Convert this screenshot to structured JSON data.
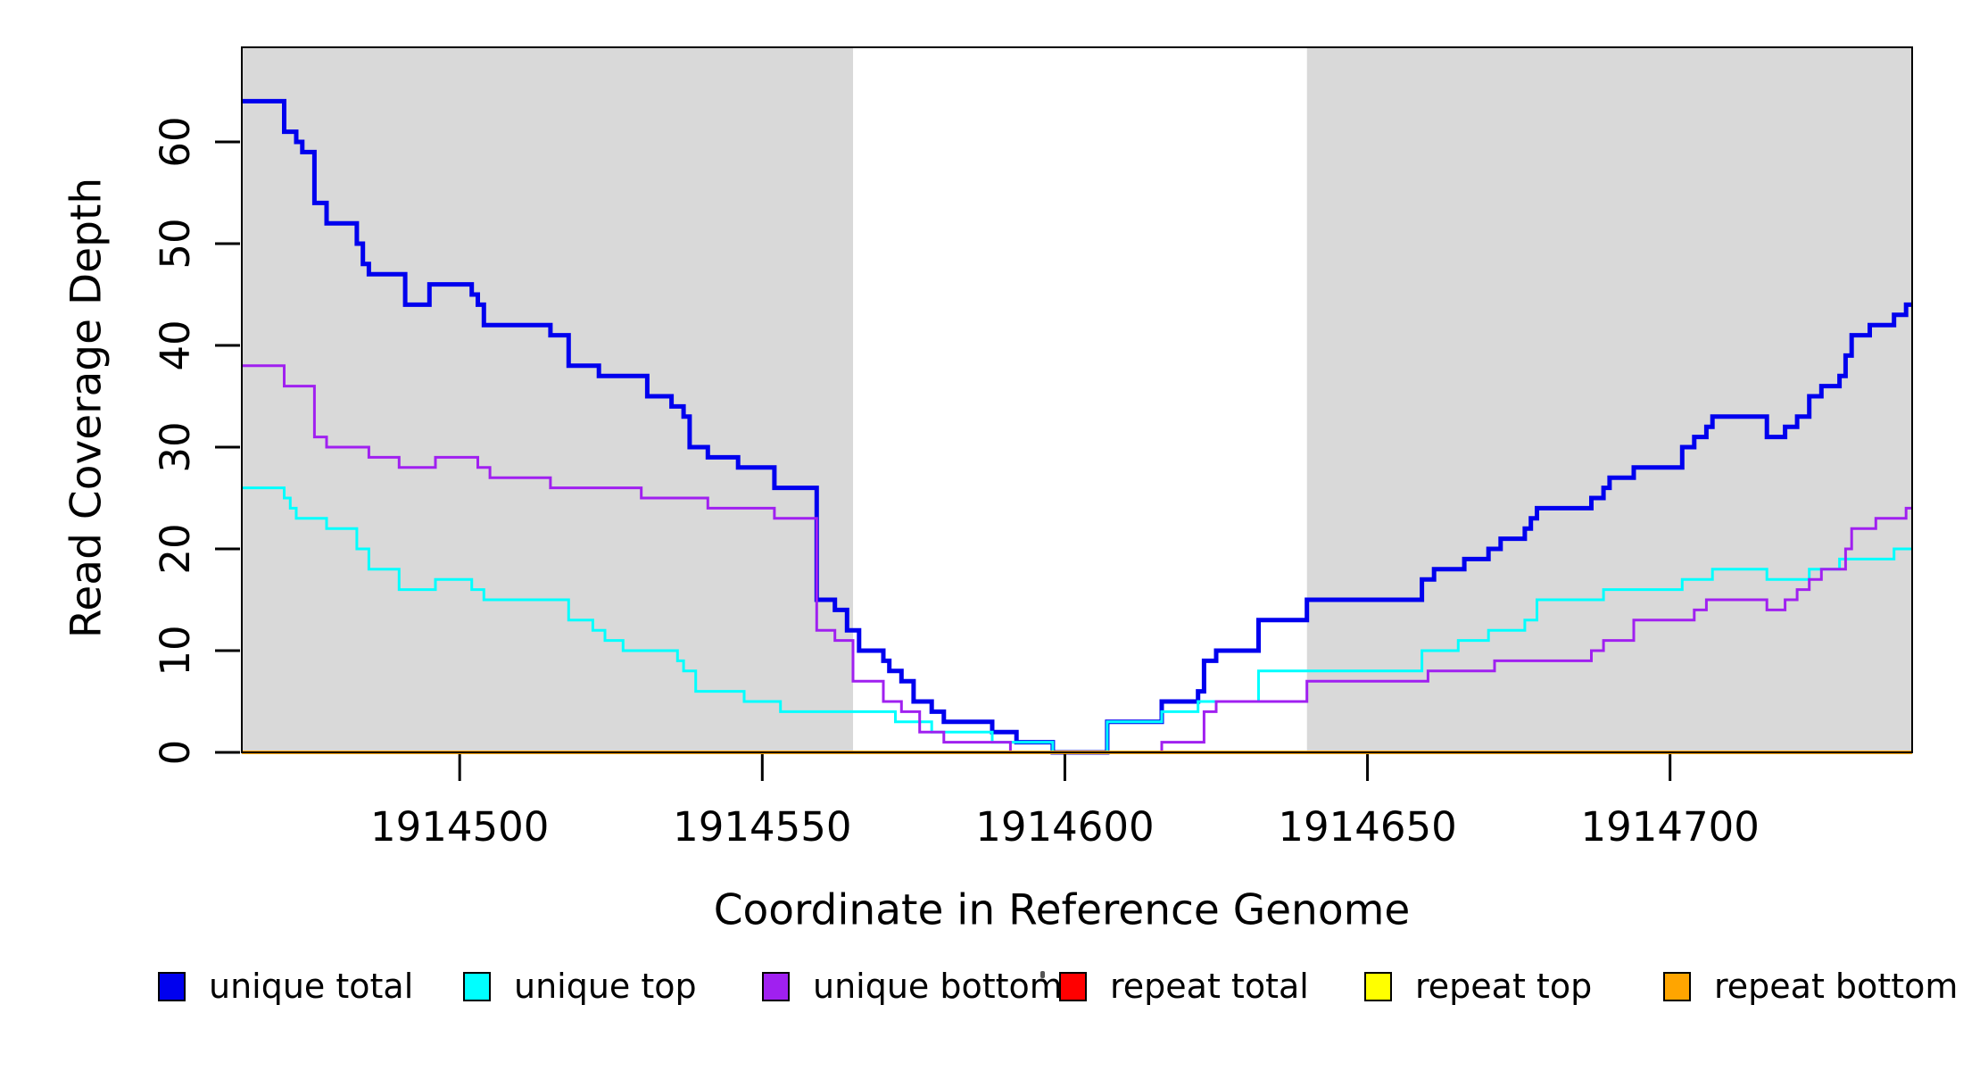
{
  "figure": {
    "background": "#FFFFFF",
    "plot_background_shaded": "#D9D9D9",
    "border_color": "#000000"
  },
  "y_axis": {
    "label": "Read Coverage Depth",
    "ticks": [
      0,
      10,
      20,
      30,
      40,
      50,
      60
    ],
    "range": [
      0,
      69.3
    ]
  },
  "x_axis": {
    "label": "Coordinate in Reference Genome",
    "ticks": [
      1914500,
      1914550,
      1914600,
      1914650,
      1914700
    ],
    "range": [
      1914464,
      1914740
    ]
  },
  "legend": {
    "items": [
      {
        "label": "unique total",
        "color": "#0000EE"
      },
      {
        "label": "unique top",
        "color": "#00FFFF"
      },
      {
        "label": "unique bottom",
        "color": "#A020F0"
      },
      {
        "label": "repeat total",
        "color": "#FF0000"
      },
      {
        "label": "repeat top",
        "color": "#FFFF00"
      },
      {
        "label": "repeat bottom",
        "color": "#FFA500"
      }
    ]
  },
  "chart_data": {
    "type": "line",
    "style": "step-after",
    "title": "",
    "xlabel": "Coordinate in Reference Genome",
    "ylabel": "Read Coverage Depth",
    "xlim": [
      1914464,
      1914740
    ],
    "ylim": [
      0,
      69.3
    ],
    "grid": false,
    "legend_position": "bottom",
    "shaded_regions": {
      "color": "#D9D9D9",
      "note": "gray = repeat-flanking regions; central white window",
      "x_ranges": [
        [
          1914464,
          1914565
        ],
        [
          1914640,
          1914740
        ]
      ]
    },
    "series": [
      {
        "name": "unique total",
        "color": "#0000EE",
        "line_width": 5,
        "points": [
          [
            1914464,
            64
          ],
          [
            1914471,
            61
          ],
          [
            1914473,
            60
          ],
          [
            1914474,
            59
          ],
          [
            1914476,
            54
          ],
          [
            1914478,
            52
          ],
          [
            1914483,
            50
          ],
          [
            1914484,
            48
          ],
          [
            1914485,
            47
          ],
          [
            1914491,
            44
          ],
          [
            1914495,
            46
          ],
          [
            1914502,
            45
          ],
          [
            1914503,
            44
          ],
          [
            1914504,
            42
          ],
          [
            1914515,
            41
          ],
          [
            1914518,
            38
          ],
          [
            1914523,
            37
          ],
          [
            1914531,
            35
          ],
          [
            1914535,
            34
          ],
          [
            1914537,
            33
          ],
          [
            1914538,
            30
          ],
          [
            1914541,
            29
          ],
          [
            1914546,
            28
          ],
          [
            1914552,
            26
          ],
          [
            1914559,
            15
          ],
          [
            1914562,
            14
          ],
          [
            1914564,
            12
          ],
          [
            1914566,
            10
          ],
          [
            1914570,
            9
          ],
          [
            1914571,
            8
          ],
          [
            1914573,
            7
          ],
          [
            1914575,
            5
          ],
          [
            1914578,
            4
          ],
          [
            1914580,
            3
          ],
          [
            1914588,
            2
          ],
          [
            1914592,
            1
          ],
          [
            1914598,
            0
          ],
          [
            1914607,
            3
          ],
          [
            1914616,
            5
          ],
          [
            1914622,
            6
          ],
          [
            1914623,
            9
          ],
          [
            1914625,
            10
          ],
          [
            1914632,
            13
          ],
          [
            1914640,
            15
          ],
          [
            1914659,
            17
          ],
          [
            1914661,
            18
          ],
          [
            1914666,
            19
          ],
          [
            1914670,
            20
          ],
          [
            1914672,
            21
          ],
          [
            1914676,
            22
          ],
          [
            1914677,
            23
          ],
          [
            1914678,
            24
          ],
          [
            1914687,
            25
          ],
          [
            1914689,
            26
          ],
          [
            1914690,
            27
          ],
          [
            1914694,
            28
          ],
          [
            1914702,
            30
          ],
          [
            1914704,
            31
          ],
          [
            1914706,
            32
          ],
          [
            1914707,
            33
          ],
          [
            1914716,
            31
          ],
          [
            1914719,
            32
          ],
          [
            1914721,
            33
          ],
          [
            1914723,
            35
          ],
          [
            1914725,
            36
          ],
          [
            1914728,
            37
          ],
          [
            1914729,
            39
          ],
          [
            1914730,
            41
          ],
          [
            1914733,
            42
          ],
          [
            1914737,
            43
          ],
          [
            1914739,
            44
          ]
        ]
      },
      {
        "name": "unique top",
        "color": "#00FFFF",
        "line_width": 3,
        "points": [
          [
            1914464,
            26
          ],
          [
            1914471,
            25
          ],
          [
            1914472,
            24
          ],
          [
            1914473,
            23
          ],
          [
            1914478,
            22
          ],
          [
            1914483,
            20
          ],
          [
            1914485,
            18
          ],
          [
            1914490,
            16
          ],
          [
            1914496,
            17
          ],
          [
            1914502,
            16
          ],
          [
            1914504,
            15
          ],
          [
            1914518,
            13
          ],
          [
            1914522,
            12
          ],
          [
            1914524,
            11
          ],
          [
            1914527,
            10
          ],
          [
            1914536,
            9
          ],
          [
            1914537,
            8
          ],
          [
            1914539,
            6
          ],
          [
            1914547,
            5
          ],
          [
            1914553,
            4
          ],
          [
            1914572,
            3
          ],
          [
            1914578,
            2
          ],
          [
            1914588,
            1
          ],
          [
            1914598,
            0
          ],
          [
            1914607,
            3
          ],
          [
            1914616,
            4
          ],
          [
            1914622,
            5
          ],
          [
            1914632,
            8
          ],
          [
            1914659,
            10
          ],
          [
            1914665,
            11
          ],
          [
            1914670,
            12
          ],
          [
            1914676,
            13
          ],
          [
            1914678,
            15
          ],
          [
            1914689,
            16
          ],
          [
            1914702,
            17
          ],
          [
            1914707,
            18
          ],
          [
            1914716,
            17
          ],
          [
            1914723,
            18
          ],
          [
            1914728,
            19
          ],
          [
            1914737,
            20
          ]
        ]
      },
      {
        "name": "unique bottom",
        "color": "#A020F0",
        "line_width": 3,
        "points": [
          [
            1914464,
            38
          ],
          [
            1914471,
            36
          ],
          [
            1914476,
            31
          ],
          [
            1914478,
            30
          ],
          [
            1914485,
            29
          ],
          [
            1914490,
            28
          ],
          [
            1914496,
            29
          ],
          [
            1914503,
            28
          ],
          [
            1914505,
            27
          ],
          [
            1914515,
            26
          ],
          [
            1914530,
            25
          ],
          [
            1914541,
            24
          ],
          [
            1914552,
            23
          ],
          [
            1914559,
            12
          ],
          [
            1914562,
            11
          ],
          [
            1914565,
            7
          ],
          [
            1914570,
            5
          ],
          [
            1914573,
            4
          ],
          [
            1914576,
            2
          ],
          [
            1914580,
            1
          ],
          [
            1914591,
            0
          ],
          [
            1914616,
            1
          ],
          [
            1914623,
            4
          ],
          [
            1914625,
            5
          ],
          [
            1914640,
            7
          ],
          [
            1914660,
            8
          ],
          [
            1914671,
            9
          ],
          [
            1914687,
            10
          ],
          [
            1914689,
            11
          ],
          [
            1914694,
            13
          ],
          [
            1914704,
            14
          ],
          [
            1914706,
            15
          ],
          [
            1914716,
            14
          ],
          [
            1914719,
            15
          ],
          [
            1914721,
            16
          ],
          [
            1914723,
            17
          ],
          [
            1914725,
            18
          ],
          [
            1914729,
            20
          ],
          [
            1914730,
            22
          ],
          [
            1914734,
            23
          ],
          [
            1914739,
            24
          ]
        ]
      },
      {
        "name": "repeat total",
        "color": "#FF0000",
        "line_width": 3,
        "points": [
          [
            1914464,
            0
          ],
          [
            1914739,
            0
          ]
        ]
      },
      {
        "name": "repeat top",
        "color": "#FFFF00",
        "line_width": 3,
        "points": [
          [
            1914464,
            0
          ],
          [
            1914739,
            0
          ]
        ]
      },
      {
        "name": "repeat bottom",
        "color": "#FFA500",
        "line_width": 4,
        "points": [
          [
            1914464,
            0
          ],
          [
            1914739,
            0
          ]
        ]
      }
    ]
  }
}
